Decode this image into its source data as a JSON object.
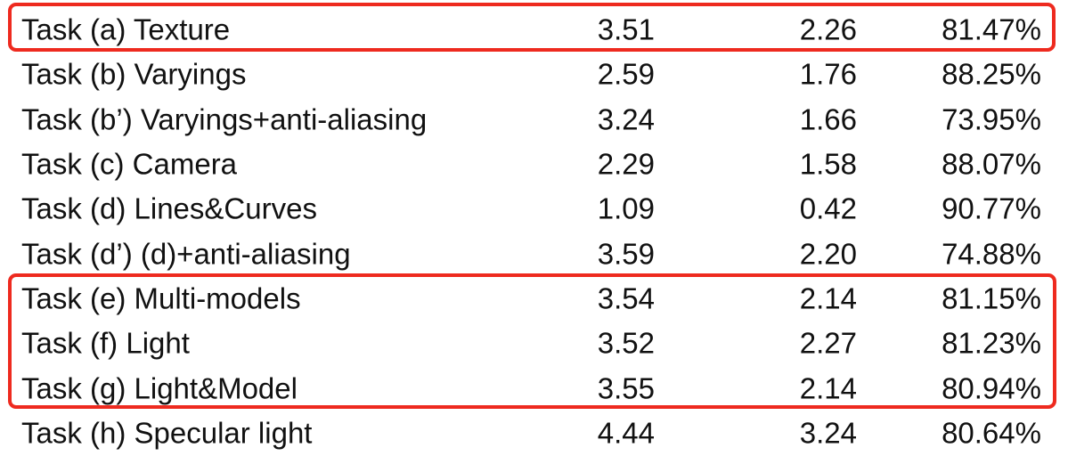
{
  "rows": [
    {
      "name": "Task (a) Texture",
      "v1": "3.51",
      "v2": "2.26",
      "v3": "81.47%"
    },
    {
      "name": "Task (b) Varyings",
      "v1": "2.59",
      "v2": "1.76",
      "v3": "88.25%"
    },
    {
      "name": "Task (b’) Varyings+anti-aliasing",
      "v1": "3.24",
      "v2": "1.66",
      "v3": "73.95%"
    },
    {
      "name": "Task (c) Camera",
      "v1": "2.29",
      "v2": "1.58",
      "v3": "88.07%"
    },
    {
      "name": "Task (d) Lines&Curves",
      "v1": "1.09",
      "v2": "0.42",
      "v3": "90.77%"
    },
    {
      "name": "Task (d’) (d)+anti-aliasing",
      "v1": "3.59",
      "v2": "2.20",
      "v3": "74.88%"
    },
    {
      "name": "Task (e) Multi-models",
      "v1": "3.54",
      "v2": "2.14",
      "v3": "81.15%"
    },
    {
      "name": "Task (f) Light",
      "v1": "3.52",
      "v2": "2.27",
      "v3": "81.23%"
    },
    {
      "name": "Task (g) Light&Model",
      "v1": "3.55",
      "v2": "2.14",
      "v3": "80.94%"
    },
    {
      "name": "Task (h) Specular light",
      "v1": "4.44",
      "v2": "3.24",
      "v3": "80.64%"
    }
  ],
  "highlight_color": "#ee2a1f"
}
